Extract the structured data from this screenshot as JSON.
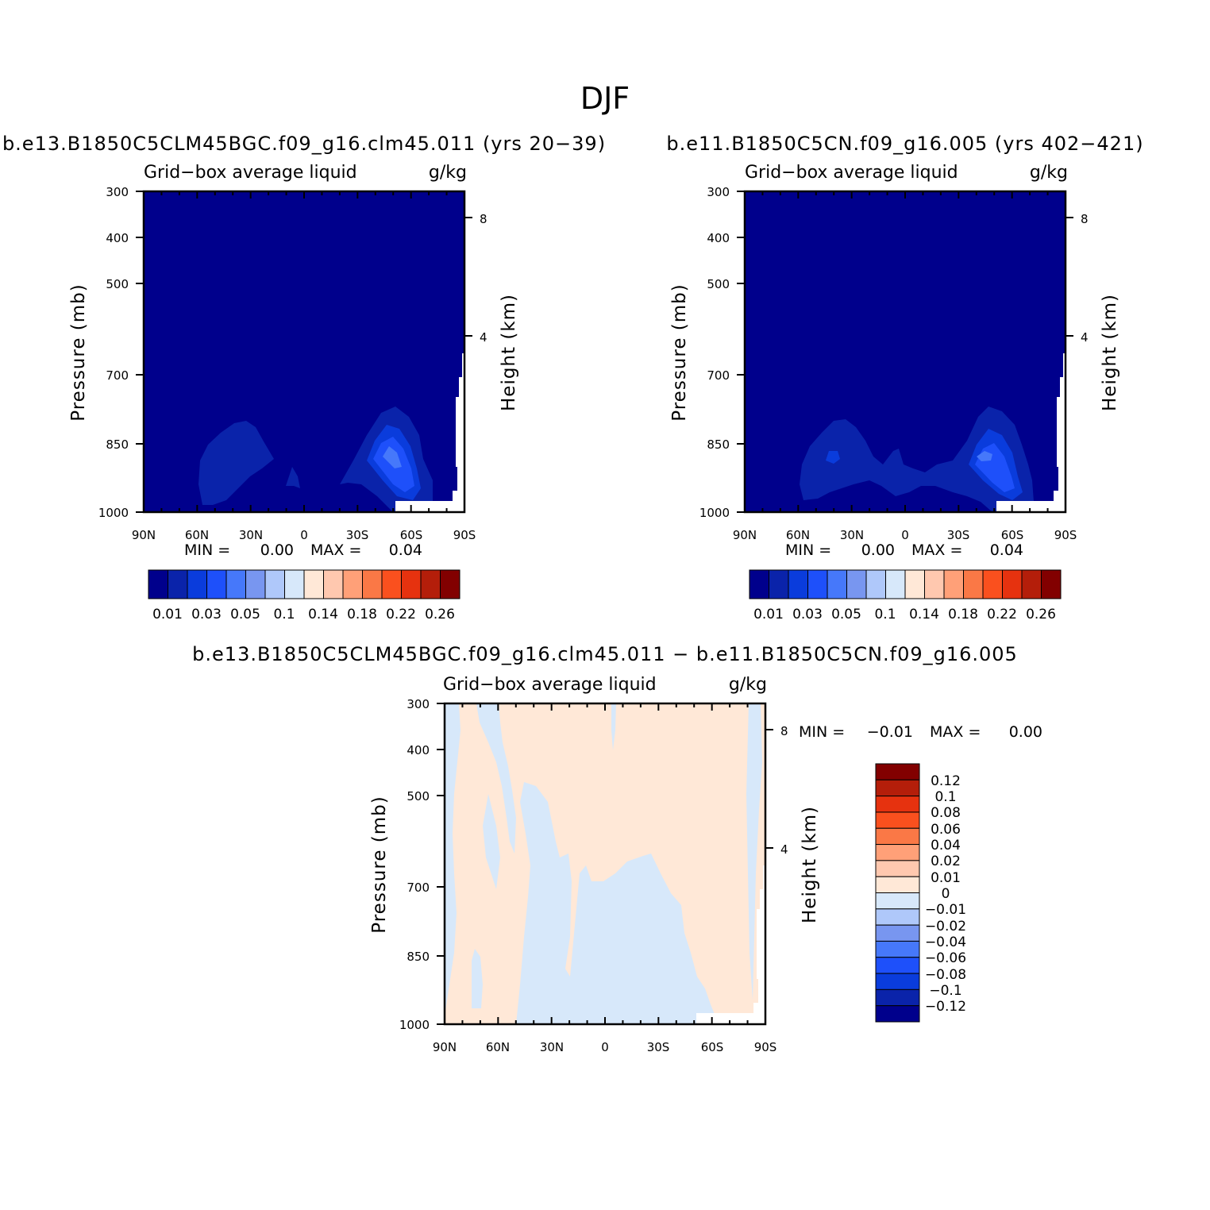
{
  "figure": {
    "title": "DJF"
  },
  "colors": {
    "background_field": "#00008C",
    "missing": "#FFFFFF"
  },
  "panels": [
    {
      "id": "top-left",
      "title": "b.e13.B1850C5CLM45BGC.f09_g16.clm45.011 (yrs 20−39)",
      "variable": "Grid−box average liquid",
      "units": "g/kg",
      "ylabel": "Pressure (mb)",
      "y2label": "Height (km)",
      "stats": {
        "min_label": "MIN =",
        "min_value": "0.00",
        "max_label": "MAX =",
        "max_value": "0.04"
      }
    },
    {
      "id": "top-right",
      "title": "b.e11.B1850C5CN.f09_g16.005 (yrs 402−421)",
      "variable": "Grid−box average liquid",
      "units": "g/kg",
      "ylabel": "Pressure (mb)",
      "y2label": "Height (km)",
      "stats": {
        "min_label": "MIN =",
        "min_value": "0.00",
        "max_label": "MAX =",
        "max_value": "0.04"
      }
    },
    {
      "id": "bottom",
      "title": "b.e13.B1850C5CLM45BGC.f09_g16.clm45.011 − b.e11.B1850C5CN.f09_g16.005",
      "variable": "Grid−box average liquid",
      "units": "g/kg",
      "ylabel": "Pressure (mb)",
      "y2label": "Height (km)",
      "stats": {
        "min_label": "MIN =",
        "min_value": "−0.01",
        "max_label": "MAX =",
        "max_value": "0.00"
      }
    }
  ],
  "axes": {
    "x_ticks": [
      "90N",
      "60N",
      "30N",
      "0",
      "30S",
      "60S",
      "90S"
    ],
    "y_ticks": [
      "300",
      "400",
      "500",
      "700",
      "850",
      "1000"
    ],
    "y2_ticks": [
      "8",
      "4"
    ]
  },
  "colorbars": {
    "abs": {
      "colors": [
        "#00008C",
        "#0A23AA",
        "#0A3CDC",
        "#1E50FA",
        "#4678FA",
        "#7896F0",
        "#AFC8FA",
        "#D7E8FA",
        "#FFE8D7",
        "#FFC8AF",
        "#FFA078",
        "#FA7846",
        "#FA501E",
        "#E6320F",
        "#B41E0A",
        "#820000"
      ],
      "labels": [
        "0.01",
        "0.03",
        "0.05",
        "0.1",
        "0.14",
        "0.18",
        "0.22",
        "0.26"
      ]
    },
    "diff": {
      "colors_top_to_bottom": [
        "#820000",
        "#B41E0A",
        "#E6320F",
        "#FA501E",
        "#FA7846",
        "#FFA078",
        "#FFC8AF",
        "#FFE8D7",
        "#D7E8FA",
        "#AFC8FA",
        "#7896F0",
        "#4678FA",
        "#1E50FA",
        "#0A3CDC",
        "#0A23AA",
        "#00008C"
      ],
      "labels": [
        "0.12",
        "0.1",
        "0.08",
        "0.06",
        "0.04",
        "0.02",
        "0.01",
        "0",
        "−0.01",
        "−0.02",
        "−0.04",
        "−0.06",
        "−0.08",
        "−0.1",
        "−0.12"
      ]
    }
  },
  "chart_data": [
    {
      "type": "heatmap",
      "title": "b.e13.B1850C5CLM45BGC.f09_g16.clm45.011 (yrs 20−39)",
      "variable": "Grid−box average liquid",
      "units": "g/kg",
      "x": [
        "90N",
        "60N",
        "30N",
        "0",
        "30S",
        "60S",
        "90S"
      ],
      "xlim": [
        90,
        -90
      ],
      "y_axis": "Pressure (mb)",
      "ylim": [
        1000,
        300
      ],
      "y2_axis": "Height (km)",
      "min": 0.0,
      "max": 0.04,
      "features": [
        {
          "region": "northern high latitudes",
          "lat_range": [
            70,
            30
          ],
          "pressure_top": 800,
          "max_level": 0.03
        },
        {
          "region": "southern mid latitudes",
          "lat_range": [
            -30,
            -75
          ],
          "pressure_top": 790,
          "max_level": 0.04
        }
      ]
    },
    {
      "type": "heatmap",
      "title": "b.e11.B1850C5CN.f09_g16.005 (yrs 402−421)",
      "variable": "Grid−box average liquid",
      "units": "g/kg",
      "x": [
        "90N",
        "60N",
        "30N",
        "0",
        "30S",
        "60S",
        "90S"
      ],
      "xlim": [
        90,
        -90
      ],
      "y_axis": "Pressure (mb)",
      "ylim": [
        1000,
        300
      ],
      "y2_axis": "Height (km)",
      "min": 0.0,
      "max": 0.04,
      "features": [
        {
          "region": "northern high latitudes",
          "lat_range": [
            70,
            25
          ],
          "pressure_top": 800,
          "max_level": 0.03
        },
        {
          "region": "tropics",
          "lat_range": [
            25,
            -25
          ],
          "pressure_top": 880,
          "max_level": 0.03
        },
        {
          "region": "southern mid latitudes",
          "lat_range": [
            -30,
            -75
          ],
          "pressure_top": 790,
          "max_level": 0.04
        }
      ]
    },
    {
      "type": "heatmap",
      "title": "b.e13.B1850C5CLM45BGC.f09_g16.clm45.011 − b.e11.B1850C5CN.f09_g16.005",
      "variable": "Grid−box average liquid",
      "units": "g/kg",
      "x": [
        "90N",
        "60N",
        "30N",
        "0",
        "30S",
        "60S",
        "90S"
      ],
      "xlim": [
        90,
        -90
      ],
      "y_axis": "Pressure (mb)",
      "ylim": [
        1000,
        300
      ],
      "y2_axis": "Height (km)",
      "min": -0.01,
      "max": 0.0,
      "features": [
        {
          "region": "tropics and southern subtropics",
          "lat_range": [
            40,
            -45
          ],
          "pressure_top": 640,
          "value_range": [
            -0.01,
            0
          ]
        },
        {
          "region": "northern subtropics upper",
          "lat_range": [
            60,
            35
          ],
          "pressure_top": 300,
          "value_range": [
            -0.01,
            0
          ]
        },
        {
          "region": "elsewhere",
          "value_range": [
            0,
            0.01
          ]
        }
      ]
    }
  ]
}
